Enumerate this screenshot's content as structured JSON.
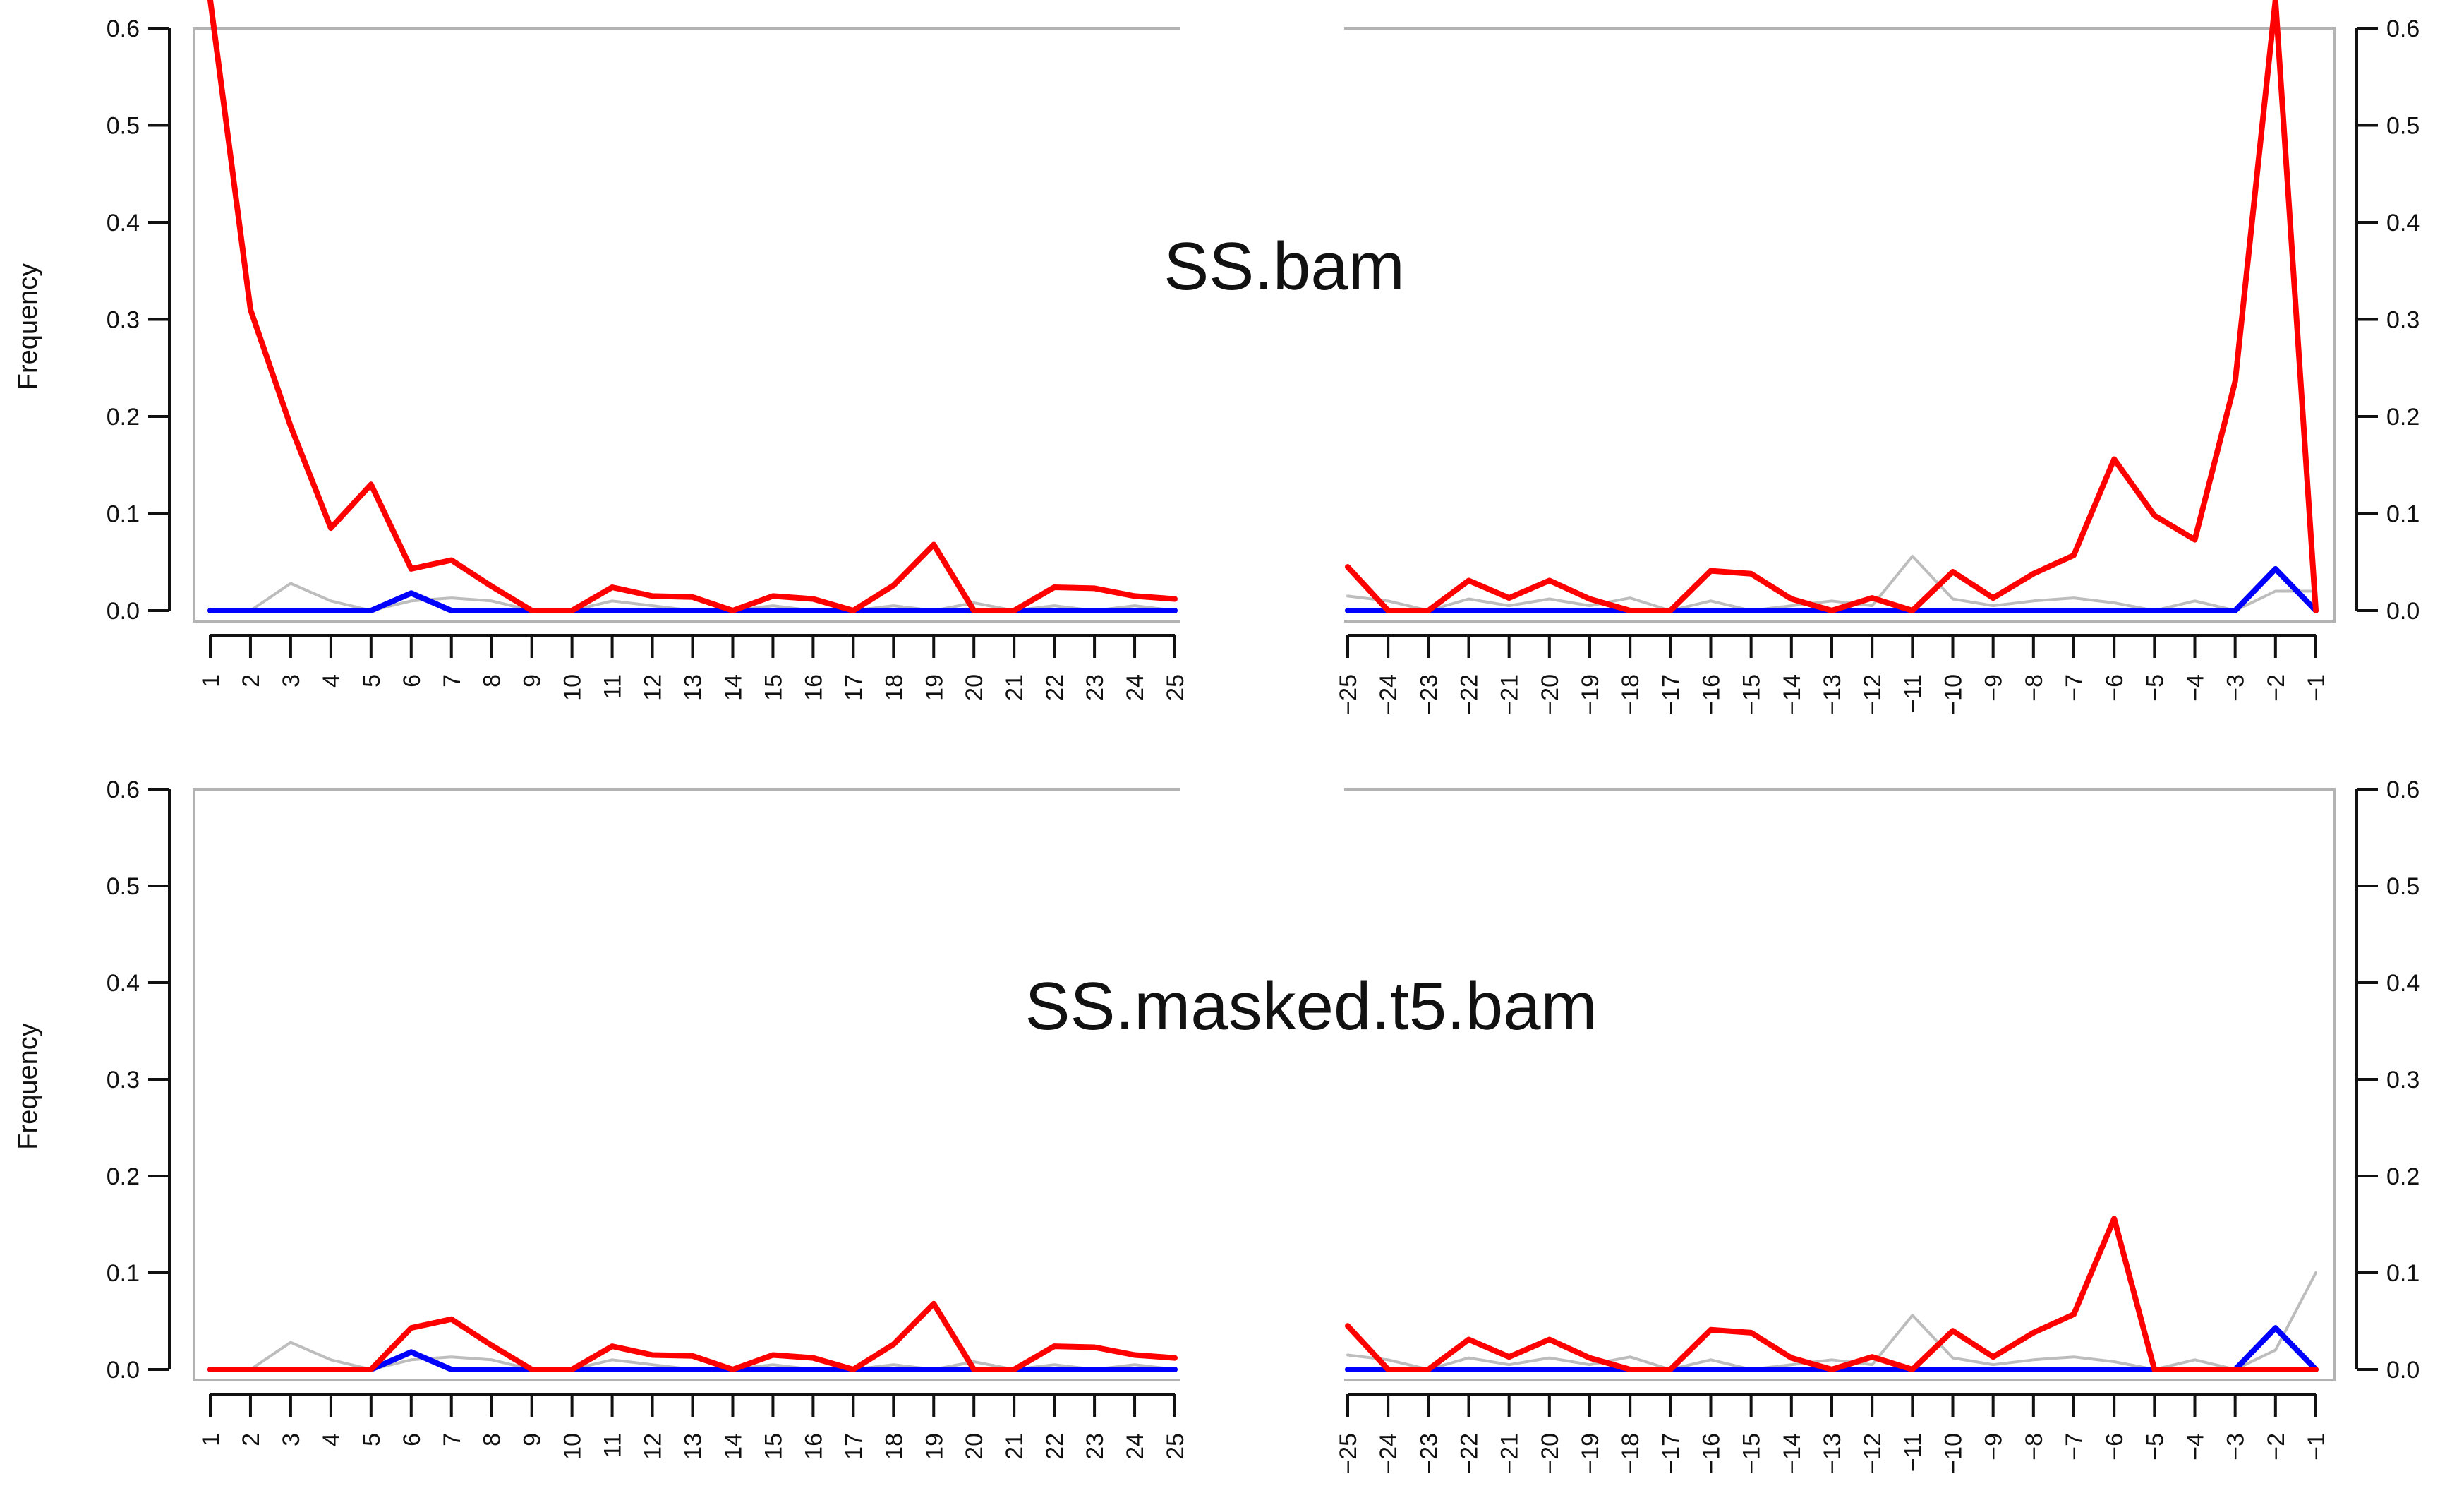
{
  "labels": {
    "ylabel": "Frequency",
    "yticks": [
      "0.0",
      "0.1",
      "0.2",
      "0.3",
      "0.4",
      "0.5",
      "0.6"
    ]
  },
  "colors": {
    "red": "#ff0000",
    "blue": "#0000ff",
    "gray": "#bdbdbd",
    "purple": "#8b3a8b",
    "frame": "#b3b3b3",
    "axis": "#111111"
  },
  "chart_data": [
    {
      "type": "line",
      "title": "SS.bam",
      "ylabel": "Frequency",
      "ylim": [
        0,
        0.6
      ],
      "yticks": [
        0,
        0.1,
        0.2,
        0.3,
        0.4,
        0.5,
        0.6
      ],
      "left": {
        "x": [
          1,
          2,
          3,
          4,
          5,
          6,
          7,
          8,
          9,
          10,
          11,
          12,
          13,
          14,
          15,
          16,
          17,
          18,
          19,
          20,
          21,
          22,
          23,
          24,
          25
        ],
        "series": [
          {
            "color": "red",
            "values": [
              0.64,
              0.31,
              0.19,
              0.085,
              0.13,
              0.043,
              0.052,
              0.025,
              0,
              0,
              0.024,
              0.015,
              0.014,
              0,
              0.015,
              0.012,
              0,
              0.026,
              0.068,
              0,
              0,
              0.024,
              0.023,
              0.015,
              0.012
            ]
          },
          {
            "color": "blue",
            "values": [
              0,
              0,
              0,
              0,
              0,
              0.018,
              0,
              0,
              0,
              0,
              0,
              0,
              0,
              0,
              0,
              0,
              0,
              0,
              0,
              0,
              0,
              0,
              0,
              0,
              0
            ]
          },
          {
            "color": "gray",
            "values": [
              0,
              0,
              0.028,
              0.01,
              0,
              0.01,
              0.013,
              0.01,
              0,
              0,
              0.01,
              0.005,
              0,
              0,
              0.005,
              0,
              0,
              0.005,
              0,
              0.008,
              0,
              0.005,
              0,
              0.005,
              0
            ]
          }
        ]
      },
      "right": {
        "x": [
          -25,
          -24,
          -23,
          -22,
          -21,
          -20,
          -19,
          -18,
          -17,
          -16,
          -15,
          -14,
          -13,
          -12,
          -11,
          -10,
          -9,
          -8,
          -7,
          -6,
          -5,
          -4,
          -3,
          -2,
          -1
        ],
        "series": [
          {
            "color": "red",
            "values": [
              0.045,
              0,
              0,
              0.031,
              0.013,
              0.031,
              0.012,
              0,
              0,
              0.041,
              0.038,
              0.012,
              0,
              0.013,
              0,
              0.04,
              0.013,
              0.038,
              0.057,
              0.156,
              0.098,
              0.073,
              0.236,
              0.65,
              0.0
            ]
          },
          {
            "color": "blue",
            "values": [
              0,
              0,
              0,
              0,
              0,
              0,
              0,
              0,
              0,
              0,
              0,
              0,
              0,
              0,
              0,
              0,
              0,
              0,
              0,
              0,
              0,
              0,
              0,
              0.043,
              0
            ]
          },
          {
            "color": "gray",
            "values": [
              0.015,
              0.01,
              0,
              0.012,
              0.005,
              0.012,
              0.005,
              0.013,
              0,
              0.01,
              0,
              0.005,
              0.01,
              0.005,
              0.056,
              0.012,
              0.005,
              0.01,
              0.013,
              0.008,
              0,
              0.01,
              0,
              0.02,
              0.02
            ]
          }
        ]
      }
    },
    {
      "type": "line",
      "title": "SS.masked.t5.bam",
      "ylabel": "Frequency",
      "ylim": [
        0,
        0.6
      ],
      "yticks": [
        0,
        0.1,
        0.2,
        0.3,
        0.4,
        0.5,
        0.6
      ],
      "left": {
        "x": [
          1,
          2,
          3,
          4,
          5,
          6,
          7,
          8,
          9,
          10,
          11,
          12,
          13,
          14,
          15,
          16,
          17,
          18,
          19,
          20,
          21,
          22,
          23,
          24,
          25
        ],
        "series": [
          {
            "color": "red",
            "values": [
              0,
              0,
              0,
              0,
              0,
              0.043,
              0.052,
              0.025,
              0,
              0,
              0.024,
              0.015,
              0.014,
              0,
              0.015,
              0.012,
              0,
              0.026,
              0.068,
              0,
              0,
              0.024,
              0.023,
              0.015,
              0.012
            ]
          },
          {
            "color": "blue",
            "values": [
              0,
              0,
              0,
              0,
              0,
              0.018,
              0,
              0,
              0,
              0,
              0,
              0,
              0,
              0,
              0,
              0,
              0,
              0,
              0,
              0,
              0,
              0,
              0,
              0,
              0
            ]
          },
          {
            "color": "gray",
            "values": [
              0,
              0,
              0.028,
              0.01,
              0,
              0.01,
              0.013,
              0.01,
              0,
              0,
              0.01,
              0.005,
              0,
              0,
              0.005,
              0,
              0,
              0.005,
              0,
              0.008,
              0,
              0.005,
              0,
              0.005,
              0
            ]
          }
        ]
      },
      "right": {
        "x": [
          -25,
          -24,
          -23,
          -22,
          -21,
          -20,
          -19,
          -18,
          -17,
          -16,
          -15,
          -14,
          -13,
          -12,
          -11,
          -10,
          -9,
          -8,
          -7,
          -6,
          -5,
          -4,
          -3,
          -2,
          -1
        ],
        "series": [
          {
            "color": "red",
            "values": [
              0.045,
              0,
              0,
              0.031,
              0.013,
              0.031,
              0.012,
              0,
              0,
              0.041,
              0.038,
              0.012,
              0,
              0.013,
              0,
              0.04,
              0.013,
              0.038,
              0.057,
              0.156,
              0,
              0,
              0,
              0,
              0
            ]
          },
          {
            "color": "blue",
            "values": [
              0,
              0,
              0,
              0,
              0,
              0,
              0,
              0,
              0,
              0,
              0,
              0,
              0,
              0,
              0,
              0,
              0,
              0,
              0,
              0,
              0,
              0,
              0,
              0.043,
              0
            ]
          },
          {
            "color": "gray",
            "values": [
              0.015,
              0.01,
              0,
              0.012,
              0.005,
              0.012,
              0.005,
              0.013,
              0,
              0.01,
              0,
              0.005,
              0.01,
              0.005,
              0.056,
              0.012,
              0.005,
              0.01,
              0.013,
              0.008,
              0,
              0.01,
              0,
              0.02,
              0.1
            ]
          }
        ]
      }
    }
  ]
}
